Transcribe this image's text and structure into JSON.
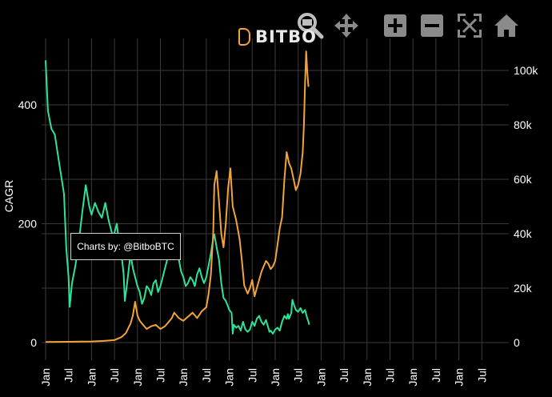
{
  "brand": {
    "name": "BITBO",
    "accent": "#f2a33a"
  },
  "toolbar": {
    "items": [
      {
        "name": "zoom-icon"
      },
      {
        "name": "pan-icon"
      },
      {
        "name": "zoom-in-icon"
      },
      {
        "name": "zoom-out-icon"
      },
      {
        "name": "autoscale-icon"
      },
      {
        "name": "home-icon"
      }
    ]
  },
  "tooltip": {
    "text": "Charts by: @BitboBTC"
  },
  "chart_data": {
    "type": "line",
    "ylabel": "CAGR",
    "y2label": "",
    "ylim": [
      0,
      480
    ],
    "y2lim": [
      0,
      105000
    ],
    "yticks": [
      0,
      200,
      400
    ],
    "y2ticks": [
      {
        "value": 0,
        "label": "0"
      },
      {
        "value": 20000,
        "label": "20k"
      },
      {
        "value": 40000,
        "label": "40k"
      },
      {
        "value": 60000,
        "label": "60k"
      },
      {
        "value": 80000,
        "label": "80k"
      },
      {
        "value": 100000,
        "label": "100k"
      }
    ],
    "xticks": [
      "Jan",
      "Jul",
      "Jan",
      "Jul",
      "Jan",
      "Jul",
      "Jan",
      "Jul",
      "Jan",
      "Jul",
      "Jan",
      "Jul",
      "Jan",
      "Jul",
      "Jan",
      "Jul",
      "Jan",
      "Jul",
      "Jan",
      "Jul"
    ],
    "grid": true,
    "series": [
      {
        "color": "#2fe29a",
        "axis": "left",
        "points": [
          [
            0,
            475
          ],
          [
            0.1,
            390
          ],
          [
            0.25,
            360
          ],
          [
            0.4,
            350
          ],
          [
            0.6,
            300
          ],
          [
            0.8,
            250
          ],
          [
            0.9,
            160
          ],
          [
            1,
            110
          ],
          [
            1.05,
            60
          ],
          [
            1.15,
            100
          ],
          [
            1.3,
            130
          ],
          [
            1.45,
            170
          ],
          [
            1.6,
            220
          ],
          [
            1.75,
            265
          ],
          [
            1.9,
            230
          ],
          [
            2,
            215
          ],
          [
            2.15,
            235
          ],
          [
            2.3,
            220
          ],
          [
            2.45,
            210
          ],
          [
            2.6,
            235
          ],
          [
            2.75,
            205
          ],
          [
            2.85,
            190
          ],
          [
            2.95,
            175
          ],
          [
            3,
            185
          ],
          [
            3.1,
            200
          ],
          [
            3.2,
            170
          ],
          [
            3.3,
            150
          ],
          [
            3.4,
            115
          ],
          [
            3.45,
            70
          ],
          [
            3.55,
            100
          ],
          [
            3.7,
            150
          ],
          [
            3.8,
            125
          ],
          [
            3.9,
            110
          ],
          [
            4,
            95
          ],
          [
            4.1,
            85
          ],
          [
            4.2,
            65
          ],
          [
            4.3,
            75
          ],
          [
            4.4,
            95
          ],
          [
            4.5,
            90
          ],
          [
            4.6,
            80
          ],
          [
            4.7,
            100
          ],
          [
            4.8,
            105
          ],
          [
            4.9,
            85
          ],
          [
            5,
            95
          ],
          [
            5.1,
            110
          ],
          [
            5.2,
            125
          ],
          [
            5.3,
            140
          ],
          [
            5.4,
            150
          ],
          [
            5.5,
            165
          ],
          [
            5.6,
            175
          ],
          [
            5.7,
            155
          ],
          [
            5.8,
            140
          ],
          [
            5.9,
            120
          ],
          [
            6,
            110
          ],
          [
            6.1,
            95
          ],
          [
            6.2,
            100
          ],
          [
            6.3,
            110
          ],
          [
            6.4,
            105
          ],
          [
            6.5,
            95
          ],
          [
            6.6,
            115
          ],
          [
            6.7,
            125
          ],
          [
            6.8,
            110
          ],
          [
            6.9,
            100
          ],
          [
            7,
            110
          ],
          [
            7.1,
            130
          ],
          [
            7.2,
            150
          ],
          [
            7.3,
            175
          ],
          [
            7.35,
            182
          ],
          [
            7.45,
            160
          ],
          [
            7.55,
            140
          ],
          [
            7.65,
            100
          ],
          [
            7.75,
            75
          ],
          [
            7.85,
            70
          ],
          [
            7.95,
            60
          ],
          [
            8,
            55
          ],
          [
            8.1,
            50
          ],
          [
            8.15,
            15
          ],
          [
            8.2,
            30
          ],
          [
            8.3,
            25
          ],
          [
            8.4,
            28
          ],
          [
            8.5,
            20
          ],
          [
            8.6,
            35
          ],
          [
            8.7,
            22
          ],
          [
            8.8,
            18
          ],
          [
            8.9,
            22
          ],
          [
            9,
            35
          ],
          [
            9.1,
            28
          ],
          [
            9.2,
            40
          ],
          [
            9.3,
            45
          ],
          [
            9.4,
            35
          ],
          [
            9.5,
            30
          ],
          [
            9.6,
            38
          ],
          [
            9.7,
            25
          ],
          [
            9.75,
            18
          ],
          [
            9.8,
            20
          ],
          [
            9.9,
            15
          ],
          [
            10,
            22
          ],
          [
            10.1,
            25
          ],
          [
            10.2,
            20
          ],
          [
            10.3,
            35
          ],
          [
            10.4,
            45
          ],
          [
            10.5,
            40
          ],
          [
            10.55,
            48
          ],
          [
            10.6,
            40
          ],
          [
            10.7,
            50
          ],
          [
            10.75,
            72
          ],
          [
            10.8,
            65
          ],
          [
            10.9,
            55
          ],
          [
            11,
            52
          ],
          [
            11.1,
            58
          ],
          [
            11.2,
            50
          ],
          [
            11.3,
            55
          ],
          [
            11.4,
            40
          ],
          [
            11.45,
            35
          ],
          [
            11.48,
            30
          ]
        ]
      },
      {
        "color": "#f2a33a",
        "axis": "right",
        "points": [
          [
            0,
            200
          ],
          [
            0.5,
            250
          ],
          [
            1,
            300
          ],
          [
            1.5,
            350
          ],
          [
            2,
            400
          ],
          [
            2.5,
            600
          ],
          [
            3,
            900
          ],
          [
            3.3,
            2000
          ],
          [
            3.5,
            3500
          ],
          [
            3.7,
            7000
          ],
          [
            3.8,
            10000
          ],
          [
            3.9,
            15000
          ],
          [
            4,
            10000
          ],
          [
            4.1,
            8000
          ],
          [
            4.2,
            7000
          ],
          [
            4.4,
            5000
          ],
          [
            4.6,
            6000
          ],
          [
            4.8,
            6500
          ],
          [
            5,
            5000
          ],
          [
            5.2,
            6000
          ],
          [
            5.4,
            8000
          ],
          [
            5.5,
            9000
          ],
          [
            5.6,
            11000
          ],
          [
            5.7,
            10000
          ],
          [
            5.8,
            9000
          ],
          [
            6,
            8000
          ],
          [
            6.2,
            9500
          ],
          [
            6.4,
            11000
          ],
          [
            6.6,
            9000
          ],
          [
            6.8,
            11500
          ],
          [
            7,
            13000
          ],
          [
            7.1,
            18000
          ],
          [
            7.2,
            25000
          ],
          [
            7.3,
            40000
          ],
          [
            7.35,
            58000
          ],
          [
            7.45,
            63000
          ],
          [
            7.55,
            52000
          ],
          [
            7.65,
            40000
          ],
          [
            7.75,
            35000
          ],
          [
            7.85,
            44000
          ],
          [
            7.95,
            57000
          ],
          [
            8.05,
            64000
          ],
          [
            8.15,
            50000
          ],
          [
            8.3,
            45000
          ],
          [
            8.45,
            38000
          ],
          [
            8.55,
            30000
          ],
          [
            8.65,
            21000
          ],
          [
            8.8,
            18000
          ],
          [
            8.9,
            20000
          ],
          [
            9,
            23000
          ],
          [
            9.1,
            17000
          ],
          [
            9.2,
            20000
          ],
          [
            9.3,
            23000
          ],
          [
            9.4,
            26000
          ],
          [
            9.5,
            28000
          ],
          [
            9.6,
            30000
          ],
          [
            9.7,
            29000
          ],
          [
            9.8,
            27000
          ],
          [
            9.9,
            28000
          ],
          [
            10,
            30000
          ],
          [
            10.1,
            36000
          ],
          [
            10.2,
            42000
          ],
          [
            10.3,
            46000
          ],
          [
            10.4,
            60000
          ],
          [
            10.5,
            70000
          ],
          [
            10.6,
            66000
          ],
          [
            10.7,
            64000
          ],
          [
            10.8,
            60000
          ],
          [
            10.9,
            56000
          ],
          [
            11,
            58000
          ],
          [
            11.1,
            62000
          ],
          [
            11.2,
            70000
          ],
          [
            11.25,
            80000
          ],
          [
            11.3,
            95000
          ],
          [
            11.35,
            107000
          ],
          [
            11.4,
            99000
          ],
          [
            11.45,
            94000
          ]
        ]
      }
    ]
  }
}
